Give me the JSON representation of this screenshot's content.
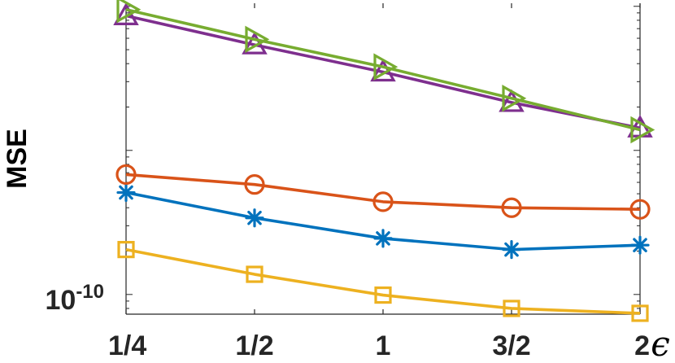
{
  "chart_data": {
    "type": "line",
    "ylabel": "MSE",
    "xlabel": "ϵ",
    "yscale": "log",
    "ylim": [
      7.3e-11,
      1.05e-08
    ],
    "grid": false,
    "categories": [
      "1/4",
      "1/2",
      "1",
      "3/2",
      "2"
    ],
    "x": [
      0.25,
      0.5,
      1,
      1.5,
      2
    ],
    "ytick_labels": [
      {
        "base": "10",
        "exponent": "-10",
        "value": 1e-10
      }
    ],
    "series": [
      {
        "color": "#77AC30",
        "marker": "triangle-right",
        "values": [
          9.5e-09,
          5.9e-09,
          3.8e-09,
          2.3e-09,
          1.39e-09
        ]
      },
      {
        "color": "#7E2F8E",
        "marker": "triangle-up",
        "values": [
          8.6e-09,
          5.4e-09,
          3.5e-09,
          2.15e-09,
          1.43e-09
        ]
      },
      {
        "color": "#D95319",
        "marker": "circle",
        "values": [
          6.8e-10,
          5.8e-10,
          4.4e-10,
          4e-10,
          3.9e-10
        ]
      },
      {
        "color": "#0072BD",
        "marker": "asterisk",
        "values": [
          5.1e-10,
          3.4e-10,
          2.45e-10,
          2.05e-10,
          2.2e-10
        ]
      },
      {
        "color": "#EDB120",
        "marker": "square",
        "values": [
          2.05e-10,
          1.38e-10,
          9.9e-11,
          8e-11,
          7.4e-11
        ]
      }
    ]
  }
}
